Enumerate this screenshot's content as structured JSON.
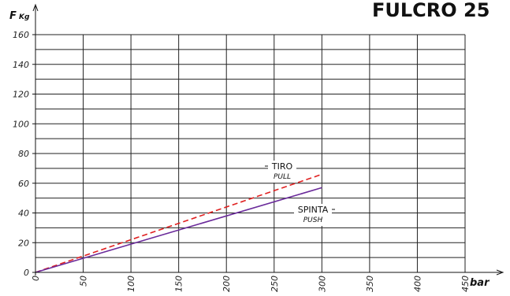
{
  "chart_data": {
    "type": "line",
    "title": "FULCRO 25",
    "ylabel_main": "F",
    "ylabel_unit": "Kg",
    "xlabel": "bar",
    "xlim": [
      0,
      450
    ],
    "ylim": [
      0,
      160
    ],
    "x_ticks": [
      "0",
      "50",
      "100",
      "150",
      "200",
      "250",
      "300",
      "350",
      "400",
      "450"
    ],
    "y_ticks": [
      "0",
      "20",
      "40",
      "60",
      "80",
      "100",
      "120",
      "140",
      "160"
    ],
    "grid": true,
    "series": [
      {
        "name": "TIRO",
        "subname": "PULL",
        "color": "#e02020",
        "style": "dashed",
        "x": [
          0,
          300
        ],
        "y": [
          0,
          66
        ]
      },
      {
        "name": "SPINTA",
        "subname": "PUSH",
        "color": "#6a2a9a",
        "style": "solid",
        "x": [
          0,
          300
        ],
        "y": [
          0,
          57
        ]
      }
    ]
  }
}
